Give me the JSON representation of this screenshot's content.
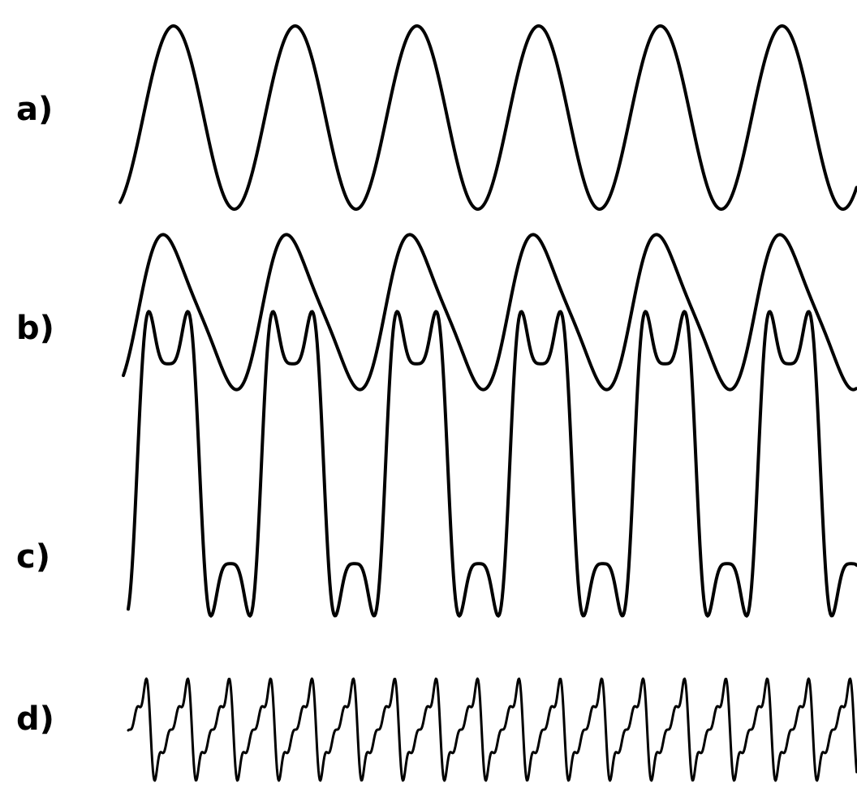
{
  "panels": [
    {
      "id": "a",
      "label": "a)",
      "waveform": "sine",
      "cycles_visible": 6
    },
    {
      "id": "b",
      "label": "b)",
      "waveform": "sine-skewed",
      "cycles_visible": 6
    },
    {
      "id": "c",
      "label": "c)",
      "waveform": "peaked-harmonic",
      "cycles_visible": 6
    },
    {
      "id": "d",
      "label": "d)",
      "waveform": "sawtooth-like",
      "cycles_visible": 17
    }
  ],
  "colors": {
    "background": "#ffffff",
    "ink": "#000000"
  }
}
